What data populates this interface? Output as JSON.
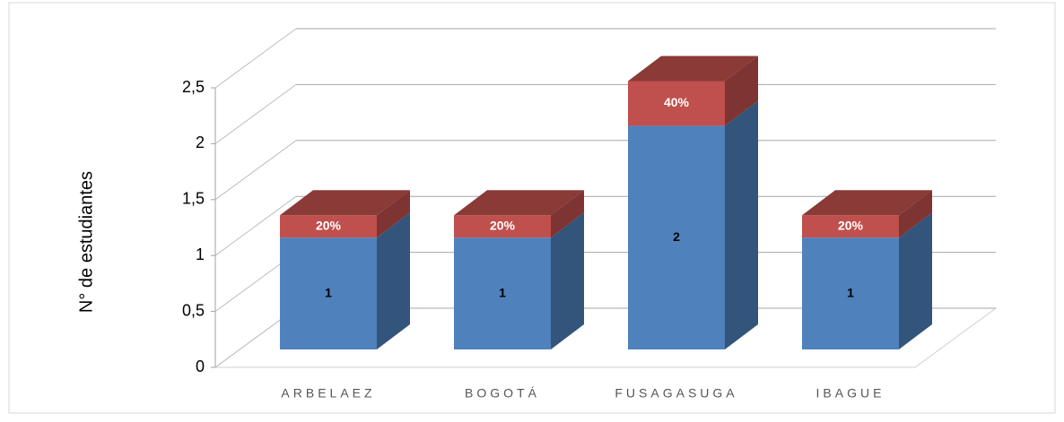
{
  "chart_data": {
    "type": "bar3d_stacked",
    "y_label": "N° de estudiantes",
    "categories": [
      "ARBELAEZ",
      "BOGOTÁ",
      "FUSAGASUGA",
      "IBAGUE"
    ],
    "series": [
      {
        "color": "#4f81bd",
        "values": [
          1,
          1,
          2,
          1
        ]
      },
      {
        "color": "#c0504d",
        "values": [
          0.2,
          0.2,
          0.4,
          0.2
        ],
        "value_labels": [
          "20%",
          "20%",
          "40%",
          "20%"
        ]
      }
    ],
    "ylim": [
      0,
      2.5
    ],
    "yticks": [
      0,
      {
        "value": 0.5,
        "label": "0,5"
      },
      1,
      {
        "value": 1.5,
        "label": "1,5"
      },
      2,
      {
        "value": 2.5,
        "label": "2,5"
      }
    ],
    "grid": true
  }
}
